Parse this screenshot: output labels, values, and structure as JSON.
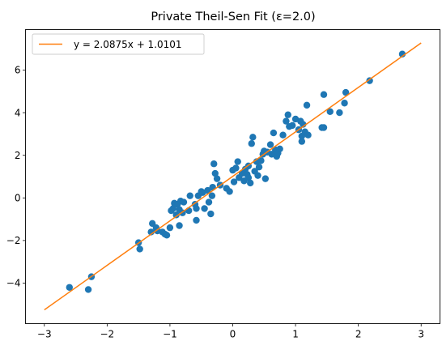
{
  "chart_data": {
    "type": "scatter",
    "title": "Private Theil-Sen Fit (ε=2.0)",
    "xlabel": "",
    "ylabel": "",
    "xlim": [
      -3.3,
      3.3
    ],
    "ylim": [
      -5.9,
      7.9
    ],
    "xticks": [
      -3,
      -2,
      -1,
      0,
      1,
      2,
      3
    ],
    "yticks": [
      -4,
      -2,
      0,
      2,
      4,
      6
    ],
    "xtick_labels": [
      "−3",
      "−2",
      "−1",
      "0",
      "1",
      "2",
      "3"
    ],
    "ytick_labels": [
      "−4",
      "−2",
      "0",
      "2",
      "4",
      "6"
    ],
    "grid": false,
    "legend_position": "top-left",
    "colors": {
      "points": "#1f77b4",
      "fit_line": "#ff7f0e"
    },
    "fit_line": {
      "label": "y = 2.0875x + 1.0101",
      "slope": 2.0875,
      "intercept": 1.0101,
      "x": [
        -3,
        3
      ]
    },
    "points": [
      [
        -2.6,
        -4.2
      ],
      [
        -2.3,
        -4.3
      ],
      [
        -2.25,
        -3.7
      ],
      [
        -1.5,
        -2.1
      ],
      [
        -1.48,
        -2.4
      ],
      [
        -1.3,
        -1.6
      ],
      [
        -1.28,
        -1.2
      ],
      [
        -1.22,
        -1.4
      ],
      [
        -1.2,
        -1.55
      ],
      [
        -1.12,
        -1.6
      ],
      [
        -1.08,
        -1.7
      ],
      [
        -1.05,
        -1.75
      ],
      [
        -1.0,
        -1.4
      ],
      [
        -0.98,
        -0.6
      ],
      [
        -0.95,
        -0.5
      ],
      [
        -0.93,
        -0.25
      ],
      [
        -0.9,
        -0.8
      ],
      [
        -0.88,
        -0.3
      ],
      [
        -0.85,
        -0.55
      ],
      [
        -0.83,
        -0.15
      ],
      [
        -0.8,
        -0.7
      ],
      [
        -0.78,
        -0.2
      ],
      [
        -0.85,
        -1.3
      ],
      [
        -0.7,
        -0.6
      ],
      [
        -0.68,
        0.1
      ],
      [
        -0.6,
        -0.3
      ],
      [
        -0.58,
        -0.5
      ],
      [
        -0.55,
        0.1
      ],
      [
        -0.58,
        -1.05
      ],
      [
        -0.5,
        0.3
      ],
      [
        -0.48,
        0.25
      ],
      [
        -0.45,
        -0.5
      ],
      [
        -0.4,
        0.35
      ],
      [
        -0.38,
        -0.2
      ],
      [
        -0.35,
        -0.75
      ],
      [
        -0.33,
        0.1
      ],
      [
        -0.32,
        0.5
      ],
      [
        -0.3,
        1.6
      ],
      [
        -0.28,
        1.15
      ],
      [
        -0.25,
        0.9
      ],
      [
        -0.2,
        0.6
      ],
      [
        -0.1,
        0.45
      ],
      [
        -0.05,
        0.3
      ],
      [
        0.0,
        1.3
      ],
      [
        0.02,
        0.75
      ],
      [
        0.05,
        1.4
      ],
      [
        0.08,
        1.7
      ],
      [
        0.1,
        0.95
      ],
      [
        0.15,
        1.15
      ],
      [
        0.18,
        0.8
      ],
      [
        0.2,
        1.35
      ],
      [
        0.23,
        1.1
      ],
      [
        0.25,
        0.95
      ],
      [
        0.25,
        1.5
      ],
      [
        0.28,
        0.7
      ],
      [
        0.3,
        2.55
      ],
      [
        0.32,
        2.85
      ],
      [
        0.35,
        1.25
      ],
      [
        0.38,
        1.7
      ],
      [
        0.4,
        1.05
      ],
      [
        0.42,
        1.45
      ],
      [
        0.45,
        1.75
      ],
      [
        0.48,
        2.05
      ],
      [
        0.5,
        2.2
      ],
      [
        0.52,
        0.9
      ],
      [
        0.55,
        2.15
      ],
      [
        0.6,
        2.5
      ],
      [
        0.62,
        2.05
      ],
      [
        0.65,
        3.05
      ],
      [
        0.68,
        2.25
      ],
      [
        0.7,
        1.95
      ],
      [
        0.72,
        2.1
      ],
      [
        0.75,
        2.3
      ],
      [
        0.8,
        2.95
      ],
      [
        0.85,
        3.6
      ],
      [
        0.88,
        3.9
      ],
      [
        0.9,
        3.35
      ],
      [
        0.95,
        3.4
      ],
      [
        1.0,
        3.7
      ],
      [
        1.05,
        3.2
      ],
      [
        1.08,
        3.6
      ],
      [
        1.1,
        2.9
      ],
      [
        1.1,
        2.65
      ],
      [
        1.12,
        3.45
      ],
      [
        1.15,
        3.1
      ],
      [
        1.18,
        4.35
      ],
      [
        1.2,
        2.95
      ],
      [
        1.42,
        3.3
      ],
      [
        1.45,
        3.3
      ],
      [
        1.45,
        4.85
      ],
      [
        1.55,
        4.05
      ],
      [
        1.7,
        4.0
      ],
      [
        1.78,
        4.45
      ],
      [
        1.8,
        4.95
      ],
      [
        2.18,
        5.5
      ],
      [
        2.7,
        6.75
      ]
    ]
  }
}
